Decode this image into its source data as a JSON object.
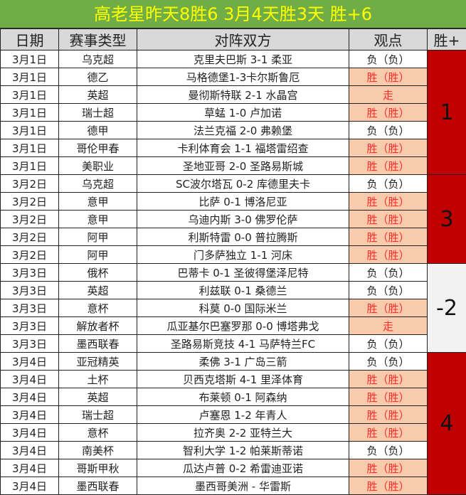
{
  "title": "高老星昨天8胜6  3月4天胜3天  胜+6",
  "headers": {
    "date": "日期",
    "league": "赛事类型",
    "match": "对阵双方",
    "view": "观点",
    "result": "胜+"
  },
  "colors": {
    "title_bg": "#70ad47",
    "title_text": "#ffff00",
    "win_bg": "#f8cbad",
    "win_text": "#ff2a2a",
    "positive_result": "#c00000",
    "negative_result": "#f2f2f2"
  },
  "rows": [
    {
      "date": "3月1日",
      "league": "乌克超",
      "match": "克里夫巴斯 3-1 柔亚",
      "view": "负（负）"
    },
    {
      "date": "3月1日",
      "league": "德乙",
      "match": "马格德堡1-3卡尔斯鲁厄",
      "view": "胜（胜）"
    },
    {
      "date": "3月1日",
      "league": "英超",
      "match": "曼彻斯特联 2-1 水晶宫",
      "view": "走"
    },
    {
      "date": "3月1日",
      "league": "瑞士超",
      "match": "草蜢 1-0 卢加诺",
      "view": "胜（胜）"
    },
    {
      "date": "3月1日",
      "league": "德甲",
      "match": "法兰克福 2-0 弗赖堡",
      "view": "负（负）"
    },
    {
      "date": "3月1日",
      "league": "哥伦甲春",
      "match": "卡利体育会 1-1 福塔雷绍查",
      "view": "胜（胜）"
    },
    {
      "date": "3月1日",
      "league": "美职业",
      "match": "圣地亚哥 2-0 圣路易斯城",
      "view": "胜（胜）"
    },
    {
      "date": "3月2日",
      "league": "乌克超",
      "match": "SC波尔塔瓦 0-2 库德里夫卡",
      "view": "负（负）"
    },
    {
      "date": "3月2日",
      "league": "意甲",
      "match": "比萨 0-1 博洛尼亚",
      "view": "胜（胜）"
    },
    {
      "date": "3月2日",
      "league": "意甲",
      "match": "乌迪内斯 3-0 佛罗伦萨",
      "view": "胜（胜）"
    },
    {
      "date": "3月2日",
      "league": "阿甲",
      "match": "利斯特雷 0-0 普拉腾斯",
      "view": "胜（胜）"
    },
    {
      "date": "3月2日",
      "league": "阿甲",
      "match": "门多萨独立 1-1 河床",
      "view": "胜（胜）"
    },
    {
      "date": "3月3日",
      "league": "俄杯",
      "match": "巴蒂卡 0-1 圣彼得堡泽尼特",
      "view": "负（负）"
    },
    {
      "date": "3月3日",
      "league": "英超",
      "match": "利兹联 0-1 桑德兰",
      "view": "负（负）"
    },
    {
      "date": "3月3日",
      "league": "意杯",
      "match": "科莫 0-0 国际米兰",
      "view": "胜（胜）"
    },
    {
      "date": "3月3日",
      "league": "解放者杯",
      "match": "瓜亚基尔巴塞罗那 0-0 博塔弗戈",
      "view": "走"
    },
    {
      "date": "3月3日",
      "league": "墨西联春",
      "match": "圣路易斯竞技 4-1 马萨特兰FC",
      "view": "负（负）"
    },
    {
      "date": "3月4日",
      "league": "亚冠精英",
      "match": "柔佛 3-1 广岛三箭",
      "view": "负（负）"
    },
    {
      "date": "3月4日",
      "league": "土杯",
      "match": "贝西克塔斯 4-1 里泽体育",
      "view": "胜（胜）"
    },
    {
      "date": "3月4日",
      "league": "英超",
      "match": "布莱顿 0-1 阿森纳",
      "view": "胜（胜）"
    },
    {
      "date": "3月4日",
      "league": "瑞士超",
      "match": "卢塞恩 1-2 年青人",
      "view": "胜（胜）"
    },
    {
      "date": "3月4日",
      "league": "意杯",
      "match": "拉齐奥 2-2 亚特兰大",
      "view": "胜（胜）"
    },
    {
      "date": "3月4日",
      "league": "南美杯",
      "match": "智利大学 1-2 帕莱斯蒂诺",
      "view": "负（负）"
    },
    {
      "date": "3月4日",
      "league": "哥斯甲秋",
      "match": "瓜达卢普 0-2 希雷迪亚诺",
      "view": "胜（胜）"
    },
    {
      "date": "3月4日",
      "league": "墨西联春",
      "match": "墨西哥美洲 - 华雷斯",
      "view": "胜（胜）"
    }
  ],
  "results": [
    {
      "value": "1",
      "span": 7,
      "positive": true
    },
    {
      "value": "3",
      "span": 5,
      "positive": true
    },
    {
      "value": "-2",
      "span": 5,
      "positive": false
    },
    {
      "value": "4",
      "span": 8,
      "positive": true
    }
  ]
}
